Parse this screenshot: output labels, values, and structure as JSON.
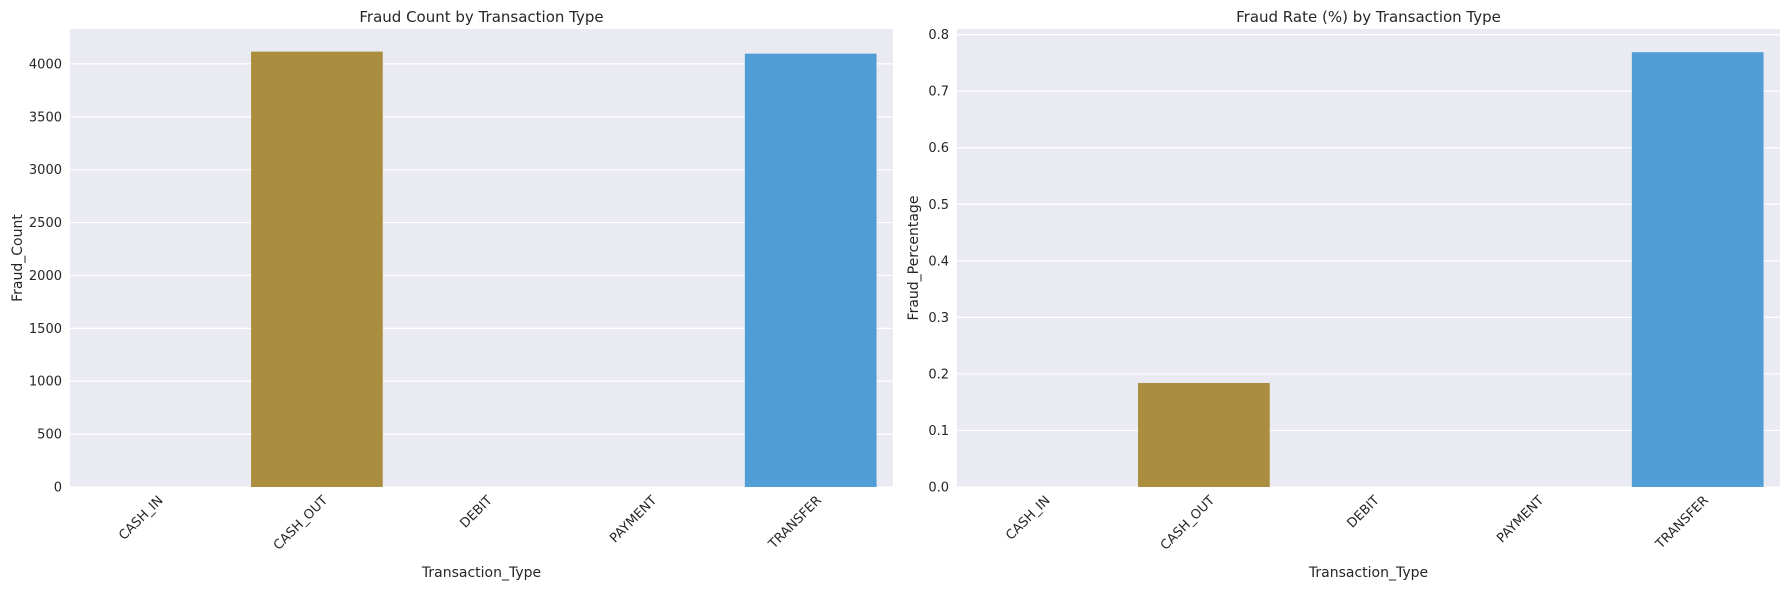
{
  "chart_data": [
    {
      "type": "bar",
      "title": "Fraud Count by Transaction Type",
      "xlabel": "Transaction_Type",
      "ylabel": "Fraud_Count",
      "categories": [
        "CASH_IN",
        "CASH_OUT",
        "DEBIT",
        "PAYMENT",
        "TRANSFER"
      ],
      "values": [
        0,
        4116,
        0,
        0,
        4097
      ],
      "colors": [
        "#3a923a",
        "#aa8d3f",
        "#c06de0",
        "#e17ca3",
        "#519ed6"
      ],
      "ylim": [
        0,
        4330
      ],
      "yticks": [
        0,
        500,
        1000,
        1500,
        2000,
        2500,
        3000,
        3500,
        4000
      ],
      "ytick_labels": [
        "0",
        "500",
        "1000",
        "1500",
        "2000",
        "2500",
        "3000",
        "3500",
        "4000"
      ],
      "grid": true,
      "legend": "none"
    },
    {
      "type": "bar",
      "title": "Fraud Rate (%) by Transaction Type",
      "xlabel": "Transaction_Type",
      "ylabel": "Fraud_Percentage",
      "categories": [
        "CASH_IN",
        "CASH_OUT",
        "DEBIT",
        "PAYMENT",
        "TRANSFER"
      ],
      "values": [
        0,
        0.184,
        0,
        0,
        0.769
      ],
      "colors": [
        "#3a923a",
        "#aa8d3f",
        "#c06de0",
        "#e17ca3",
        "#519ed6"
      ],
      "ylim": [
        0,
        0.81
      ],
      "yticks": [
        0,
        0.1,
        0.2,
        0.3,
        0.4,
        0.5,
        0.6,
        0.7,
        0.8
      ],
      "ytick_labels": [
        "0.0",
        "0.1",
        "0.2",
        "0.3",
        "0.4",
        "0.5",
        "0.6",
        "0.7",
        "0.8"
      ],
      "grid": true,
      "legend": "none"
    }
  ]
}
